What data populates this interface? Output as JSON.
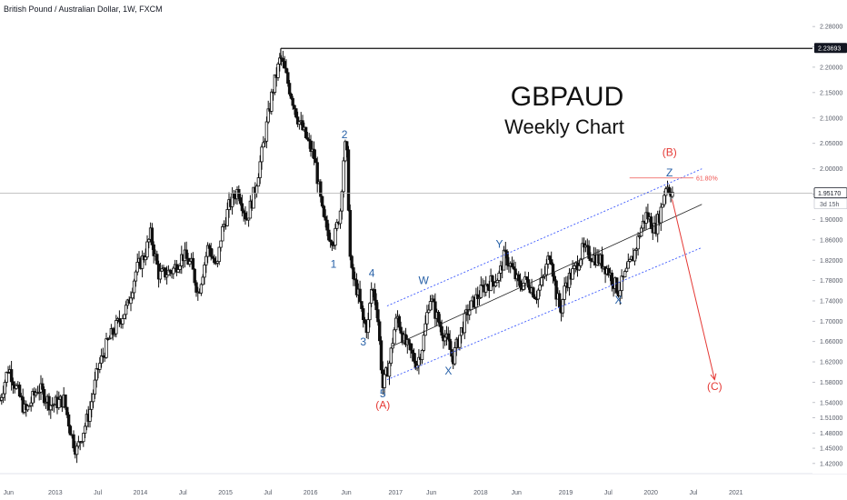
{
  "header": {
    "symbol_title": "British Pound / Australian Dollar, 1W, FXCM"
  },
  "annotation": {
    "title": "GBPAUD",
    "subtitle": "Weekly Chart"
  },
  "colors": {
    "candle": "#111111",
    "channel": "#3d5afe",
    "midline": "#222222",
    "wave_blue": "#2962a8",
    "wave_red": "#e53935",
    "fib": "#ef5350",
    "price_badge": "#131722",
    "current_line": "#b0b0b0"
  },
  "chart_data": {
    "type": "candlestick",
    "timeframe": "1W",
    "ylim": [
      1.4,
      2.3
    ],
    "yticks": [
      "2.28000",
      "2.24000",
      "2.20000",
      "2.15000",
      "2.10000",
      "2.05000",
      "2.00000",
      "1.95000",
      "1.90000",
      "1.86000",
      "1.82000",
      "1.78000",
      "1.74000",
      "1.70000",
      "1.66000",
      "1.62000",
      "1.58000",
      "1.54000",
      "1.51000",
      "1.48000",
      "1.45000",
      "1.42000"
    ],
    "ytick_values": [
      2.28,
      2.24,
      2.2,
      2.15,
      2.1,
      2.05,
      2.0,
      1.95,
      1.9,
      1.86,
      1.82,
      1.78,
      1.74,
      1.7,
      1.66,
      1.62,
      1.58,
      1.54,
      1.51,
      1.48,
      1.45,
      1.42
    ],
    "xlim": [
      2012.35,
      2021.9
    ],
    "xticks": [
      {
        "label": "Jun",
        "x": 2012.45
      },
      {
        "label": "2013",
        "x": 2013.0
      },
      {
        "label": "Jul",
        "x": 2013.5
      },
      {
        "label": "2014",
        "x": 2014.0
      },
      {
        "label": "Jul",
        "x": 2014.5
      },
      {
        "label": "2015",
        "x": 2015.0
      },
      {
        "label": "Jul",
        "x": 2015.5
      },
      {
        "label": "2016",
        "x": 2016.0
      },
      {
        "label": "Jun",
        "x": 2016.42
      },
      {
        "label": "2017",
        "x": 2017.0
      },
      {
        "label": "Jun",
        "x": 2017.42
      },
      {
        "label": "2018",
        "x": 2018.0
      },
      {
        "label": "Jun",
        "x": 2018.42
      },
      {
        "label": "2019",
        "x": 2019.0
      },
      {
        "label": "Jul",
        "x": 2019.5
      },
      {
        "label": "2020",
        "x": 2020.0
      },
      {
        "label": "Jul",
        "x": 2020.5
      },
      {
        "label": "2021",
        "x": 2021.0
      }
    ],
    "price_path": [
      [
        2012.35,
        1.545
      ],
      [
        2012.45,
        1.61
      ],
      [
        2012.65,
        1.52
      ],
      [
        2012.8,
        1.57
      ],
      [
        2012.95,
        1.535
      ],
      [
        2013.1,
        1.545
      ],
      [
        2013.2,
        1.47
      ],
      [
        2013.25,
        1.445
      ],
      [
        2013.4,
        1.52
      ],
      [
        2013.5,
        1.605
      ],
      [
        2013.62,
        1.66
      ],
      [
        2013.75,
        1.7
      ],
      [
        2013.85,
        1.73
      ],
      [
        2013.95,
        1.8
      ],
      [
        2014.05,
        1.83
      ],
      [
        2014.12,
        1.87
      ],
      [
        2014.22,
        1.79
      ],
      [
        2014.38,
        1.8
      ],
      [
        2014.5,
        1.83
      ],
      [
        2014.6,
        1.81
      ],
      [
        2014.68,
        1.755
      ],
      [
        2014.8,
        1.85
      ],
      [
        2014.9,
        1.8
      ],
      [
        2014.95,
        1.87
      ],
      [
        2015.05,
        1.93
      ],
      [
        2015.15,
        1.96
      ],
      [
        2015.25,
        1.9
      ],
      [
        2015.35,
        1.96
      ],
      [
        2015.45,
        2.05
      ],
      [
        2015.55,
        2.15
      ],
      [
        2015.65,
        2.22
      ],
      [
        2015.75,
        2.16
      ],
      [
        2015.85,
        2.1
      ],
      [
        2015.95,
        2.06
      ],
      [
        2016.05,
        2.02
      ],
      [
        2016.15,
        1.9
      ],
      [
        2016.22,
        1.87
      ],
      [
        2016.28,
        1.86
      ],
      [
        2016.35,
        1.92
      ],
      [
        2016.4,
        2.05
      ],
      [
        2016.43,
        2.02
      ],
      [
        2016.47,
        1.8
      ],
      [
        2016.55,
        1.76
      ],
      [
        2016.62,
        1.7
      ],
      [
        2016.67,
        1.685
      ],
      [
        2016.72,
        1.77
      ],
      [
        2016.78,
        1.73
      ],
      [
        2016.85,
        1.57
      ],
      [
        2016.93,
        1.62
      ],
      [
        2016.98,
        1.68
      ],
      [
        2017.02,
        1.71
      ],
      [
        2017.1,
        1.66
      ],
      [
        2017.17,
        1.64
      ],
      [
        2017.25,
        1.615
      ],
      [
        2017.32,
        1.655
      ],
      [
        2017.4,
        1.75
      ],
      [
        2017.48,
        1.71
      ],
      [
        2017.55,
        1.68
      ],
      [
        2017.62,
        1.655
      ],
      [
        2017.67,
        1.625
      ],
      [
        2017.75,
        1.67
      ],
      [
        2017.85,
        1.72
      ],
      [
        2017.95,
        1.745
      ],
      [
        2018.05,
        1.77
      ],
      [
        2018.15,
        1.78
      ],
      [
        2018.22,
        1.79
      ],
      [
        2018.28,
        1.83
      ],
      [
        2018.35,
        1.81
      ],
      [
        2018.45,
        1.77
      ],
      [
        2018.55,
        1.78
      ],
      [
        2018.65,
        1.75
      ],
      [
        2018.75,
        1.79
      ],
      [
        2018.82,
        1.84
      ],
      [
        2018.88,
        1.76
      ],
      [
        2018.94,
        1.72
      ],
      [
        2019.0,
        1.775
      ],
      [
        2019.1,
        1.8
      ],
      [
        2019.2,
        1.84
      ],
      [
        2019.3,
        1.83
      ],
      [
        2019.4,
        1.82
      ],
      [
        2019.5,
        1.8
      ],
      [
        2019.55,
        1.78
      ],
      [
        2019.62,
        1.76
      ],
      [
        2019.7,
        1.79
      ],
      [
        2019.8,
        1.83
      ],
      [
        2019.88,
        1.88
      ],
      [
        2019.95,
        1.91
      ],
      [
        2020.05,
        1.88
      ],
      [
        2020.12,
        1.92
      ],
      [
        2020.18,
        1.97
      ],
      [
        2020.22,
        1.96
      ],
      [
        2020.27,
        1.951
      ]
    ],
    "channel_lines": [
      {
        "name": "upper",
        "points": [
          [
            2016.9,
            1.73
          ],
          [
            2020.6,
            2.0
          ]
        ],
        "style": "dotted"
      },
      {
        "name": "middle",
        "points": [
          [
            2016.95,
            1.65
          ],
          [
            2020.6,
            1.93
          ]
        ],
        "style": "solid"
      },
      {
        "name": "lower",
        "points": [
          [
            2016.9,
            1.585
          ],
          [
            2020.6,
            1.845
          ]
        ],
        "style": "dotted"
      }
    ],
    "wave_labels": [
      {
        "text": "2",
        "x": 2016.4,
        "y": 2.06,
        "color": "blue"
      },
      {
        "text": "1",
        "x": 2016.27,
        "y": 1.805,
        "color": "blue"
      },
      {
        "text": "4",
        "x": 2016.72,
        "y": 1.787,
        "color": "blue"
      },
      {
        "text": "3",
        "x": 2016.62,
        "y": 1.652,
        "color": "blue"
      },
      {
        "text": "5",
        "x": 2016.85,
        "y": 1.55,
        "color": "blue"
      },
      {
        "text": "(A)",
        "x": 2016.85,
        "y": 1.528,
        "color": "red"
      },
      {
        "text": "W",
        "x": 2017.33,
        "y": 1.773,
        "color": "blue"
      },
      {
        "text": "X",
        "x": 2017.62,
        "y": 1.595,
        "color": "blue"
      },
      {
        "text": "Y",
        "x": 2018.22,
        "y": 1.845,
        "color": "blue"
      },
      {
        "text": "X",
        "x": 2019.62,
        "y": 1.735,
        "color": "blue"
      },
      {
        "text": "Z",
        "x": 2020.22,
        "y": 1.985,
        "color": "blue"
      },
      {
        "text": "(B)",
        "x": 2020.22,
        "y": 2.025,
        "color": "red"
      },
      {
        "text": "(C)",
        "x": 2020.75,
        "y": 1.565,
        "color": "red"
      }
    ],
    "fib_level": {
      "label": "61.80%",
      "x1": 2019.75,
      "x2": 2020.5,
      "y": 1.982
    },
    "top_line": {
      "value": 2.23693,
      "x1": 2015.65,
      "label": "2.23693"
    },
    "current_price": {
      "value": 1.9517,
      "label": "1.95170",
      "countdown": "3d 15h"
    },
    "projection_arrow": {
      "from": [
        2020.25,
        1.94
      ],
      "to": [
        2020.75,
        1.585
      ]
    }
  }
}
